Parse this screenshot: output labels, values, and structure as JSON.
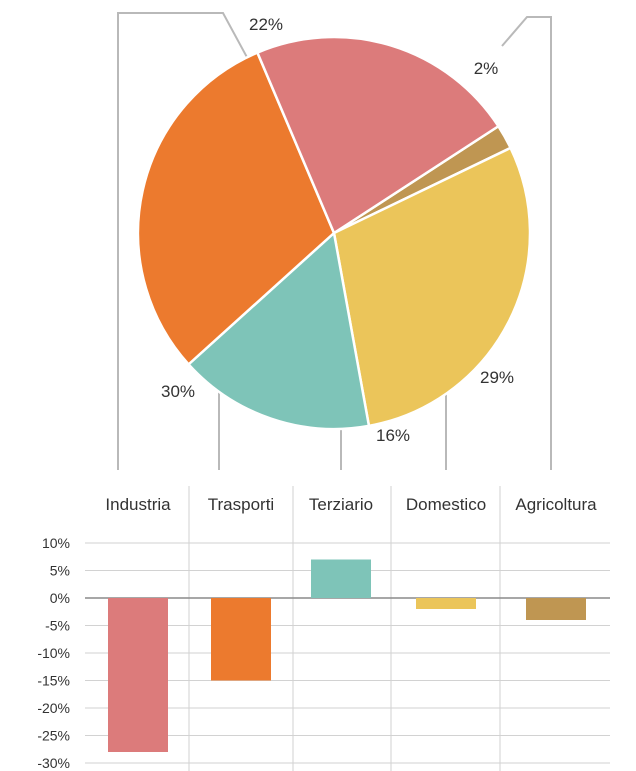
{
  "colors": {
    "industria": "#dc7b7b",
    "trasporti": "#ec7a2e",
    "terziario": "#7ec4b8",
    "domestico": "#ebc55a",
    "agricoltura": "#bf9652",
    "leader": "#b9b9b9",
    "grid": "#d2d2d2",
    "zero_line": "#8a8a8a"
  },
  "chart_data": [
    {
      "type": "pie",
      "slices": [
        {
          "category": "Agricoltura",
          "value": 2,
          "label": "2%",
          "color": "#bf9652"
        },
        {
          "category": "Domestico",
          "value": 29,
          "label": "29%",
          "color": "#ebc55a"
        },
        {
          "category": "Terziario",
          "value": 16,
          "label": "16%",
          "color": "#7ec4b8"
        },
        {
          "category": "Trasporti",
          "value": 30,
          "label": "30%",
          "color": "#ec7a2e"
        },
        {
          "category": "Industria",
          "value": 22,
          "label": "22%",
          "color": "#dc7b7b"
        }
      ],
      "start_angle_deg": 57,
      "direction": "clockwise"
    },
    {
      "type": "bar",
      "categories": [
        "Industria",
        "Trasporti",
        "Terziario",
        "Domestico",
        "Agricoltura"
      ],
      "category_labels": [
        "Industria",
        "Trasporti",
        "Terziario",
        "Domestico",
        "Agricoltura"
      ],
      "values": [
        -28,
        -15,
        7,
        -2,
        -4
      ],
      "colors": [
        "#dc7b7b",
        "#ec7a2e",
        "#7ec4b8",
        "#ebc55a",
        "#bf9652"
      ],
      "ylim": [
        -30,
        10
      ],
      "yticks": [
        10,
        5,
        0,
        -5,
        -10,
        -15,
        -20,
        -25,
        -30
      ],
      "ytick_labels": [
        "10%",
        "5%",
        "0%",
        "-5%",
        "-10%",
        "-15%",
        "-20%",
        "-25%",
        "-30%"
      ],
      "grid": true,
      "title": "",
      "xlabel": "",
      "ylabel": ""
    }
  ]
}
